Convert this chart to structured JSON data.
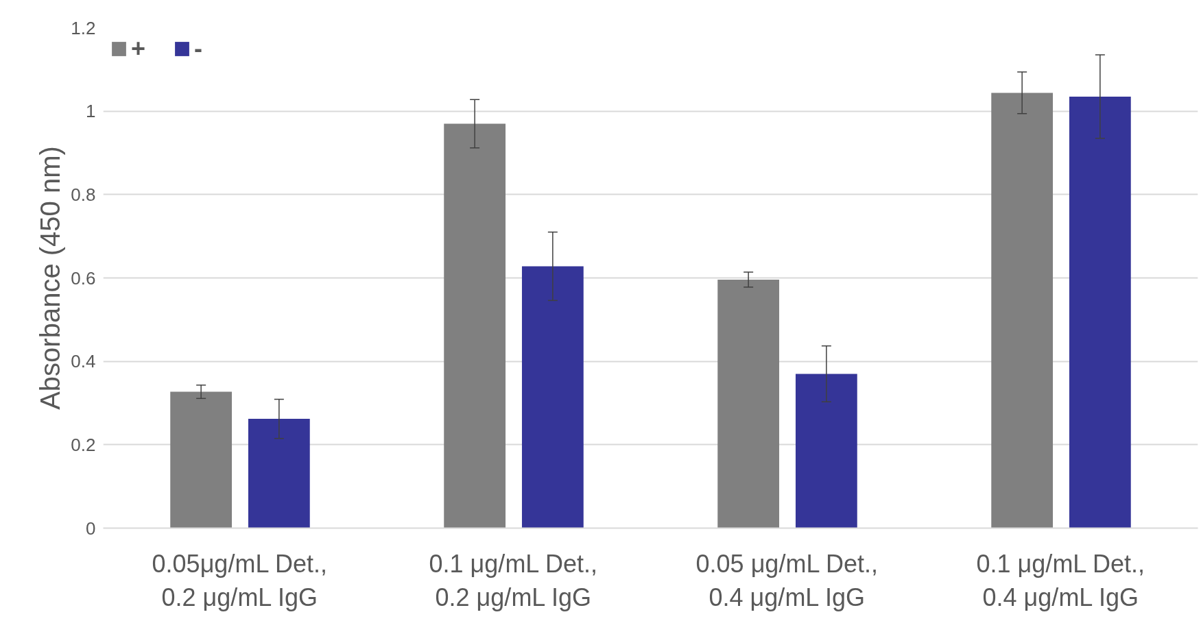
{
  "chart_data": {
    "type": "bar",
    "ylabel": "Absorbance (450 nm)",
    "categories": [
      "0.05μg/mL Det.,\n0.2 μg/mL IgG",
      "0.1 μg/mL Det.,\n0.2 μg/mL IgG",
      "0.05 μg/mL Det.,\n0.4 μg/mL IgG",
      "0.1 μg/mL Det.,\n0.4 μg/mL IgG"
    ],
    "series": [
      {
        "name": "+",
        "color": "#808080",
        "values": [
          0.327,
          0.97,
          0.596,
          1.044
        ],
        "errors": [
          0.016,
          0.058,
          0.018,
          0.05
        ]
      },
      {
        "name": "-",
        "color": "#353598",
        "values": [
          0.262,
          0.628,
          0.37,
          1.035
        ],
        "errors": [
          0.047,
          0.082,
          0.067,
          0.1
        ]
      }
    ],
    "ylim": [
      0,
      1.2
    ],
    "yticks": [
      0,
      0.2,
      0.4,
      0.6,
      0.8,
      1,
      1.2
    ],
    "grid": "y",
    "legend": "top left"
  }
}
